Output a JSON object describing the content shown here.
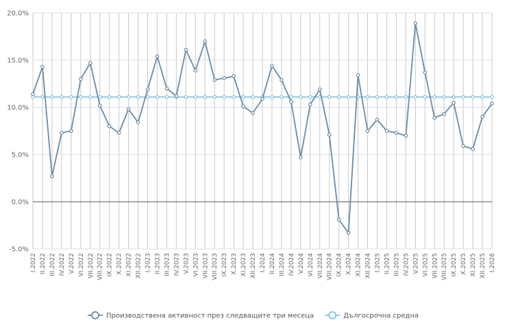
{
  "chart_data": {
    "type": "line",
    "title": "",
    "xlabel": "",
    "ylabel": "",
    "ylim": [
      -5,
      20
    ],
    "yticks": [
      -5,
      0,
      5,
      10,
      15,
      20
    ],
    "ytick_labels": [
      "-5.0%",
      "0.0%",
      "5.0%",
      "10.0%",
      "15.0%",
      "20.0%"
    ],
    "grid": true,
    "legend_position": "bottom",
    "categories": [
      "I.2022",
      "II.2022",
      "III.2022",
      "IV.2022",
      "V.2022",
      "VI.2022",
      "VII.2022",
      "VIII.2022",
      "IX.2022",
      "X.2022",
      "XI.2022",
      "XII.2022",
      "I.2023",
      "II.2023",
      "III.2023",
      "IV.2023",
      "V.2023",
      "VI.2023",
      "VII.2023",
      "VIII.2023",
      "IX.2023",
      "X.2023",
      "XI.2023",
      "XII.2023",
      "I.2024",
      "II.2024",
      "III.2024",
      "IV.2024",
      "V.2024",
      "VI.2024",
      "VII.2024",
      "VIII.2024",
      "IX.2024",
      "X.2024",
      "XI.2024",
      "XII.2024",
      "I.2025",
      "II.2025",
      "III.2025",
      "IV.2025",
      "V.2025",
      "VI.2025",
      "VII.2025",
      "VIII.2025",
      "IX.2025",
      "X.2025",
      "XI.2025",
      "XII.2025",
      "I.2026"
    ],
    "series": [
      {
        "name": "Производствена активност през следващите три месеца",
        "color": "#6b8aa3",
        "values": [
          11.4,
          14.3,
          2.7,
          7.3,
          7.5,
          13.0,
          14.7,
          10.2,
          8.0,
          7.3,
          9.8,
          8.4,
          11.9,
          15.4,
          12.0,
          11.2,
          16.1,
          13.9,
          17.0,
          12.9,
          13.1,
          13.3,
          10.1,
          9.4,
          10.9,
          14.4,
          12.9,
          10.6,
          4.7,
          10.3,
          11.9,
          7.1,
          -1.9,
          -3.3,
          13.4,
          7.5,
          8.7,
          7.5,
          7.3,
          7.0,
          18.9,
          13.7,
          8.9,
          9.3,
          10.5,
          5.9,
          5.6,
          9.0,
          10.4
        ]
      },
      {
        "name": "Дългосрочна средна",
        "color": "#7ec4e0",
        "values": [
          11.1,
          11.1,
          11.1,
          11.1,
          11.1,
          11.1,
          11.1,
          11.1,
          11.1,
          11.1,
          11.1,
          11.1,
          11.1,
          11.1,
          11.1,
          11.1,
          11.1,
          11.1,
          11.1,
          11.1,
          11.1,
          11.1,
          11.1,
          11.1,
          11.1,
          11.1,
          11.1,
          11.1,
          11.1,
          11.1,
          11.1,
          11.1,
          11.1,
          11.1,
          11.1,
          11.1,
          11.1,
          11.1,
          11.1,
          11.1,
          11.1,
          11.1,
          11.1,
          11.1,
          11.1,
          11.1,
          11.1,
          11.1,
          11.1
        ]
      }
    ]
  }
}
